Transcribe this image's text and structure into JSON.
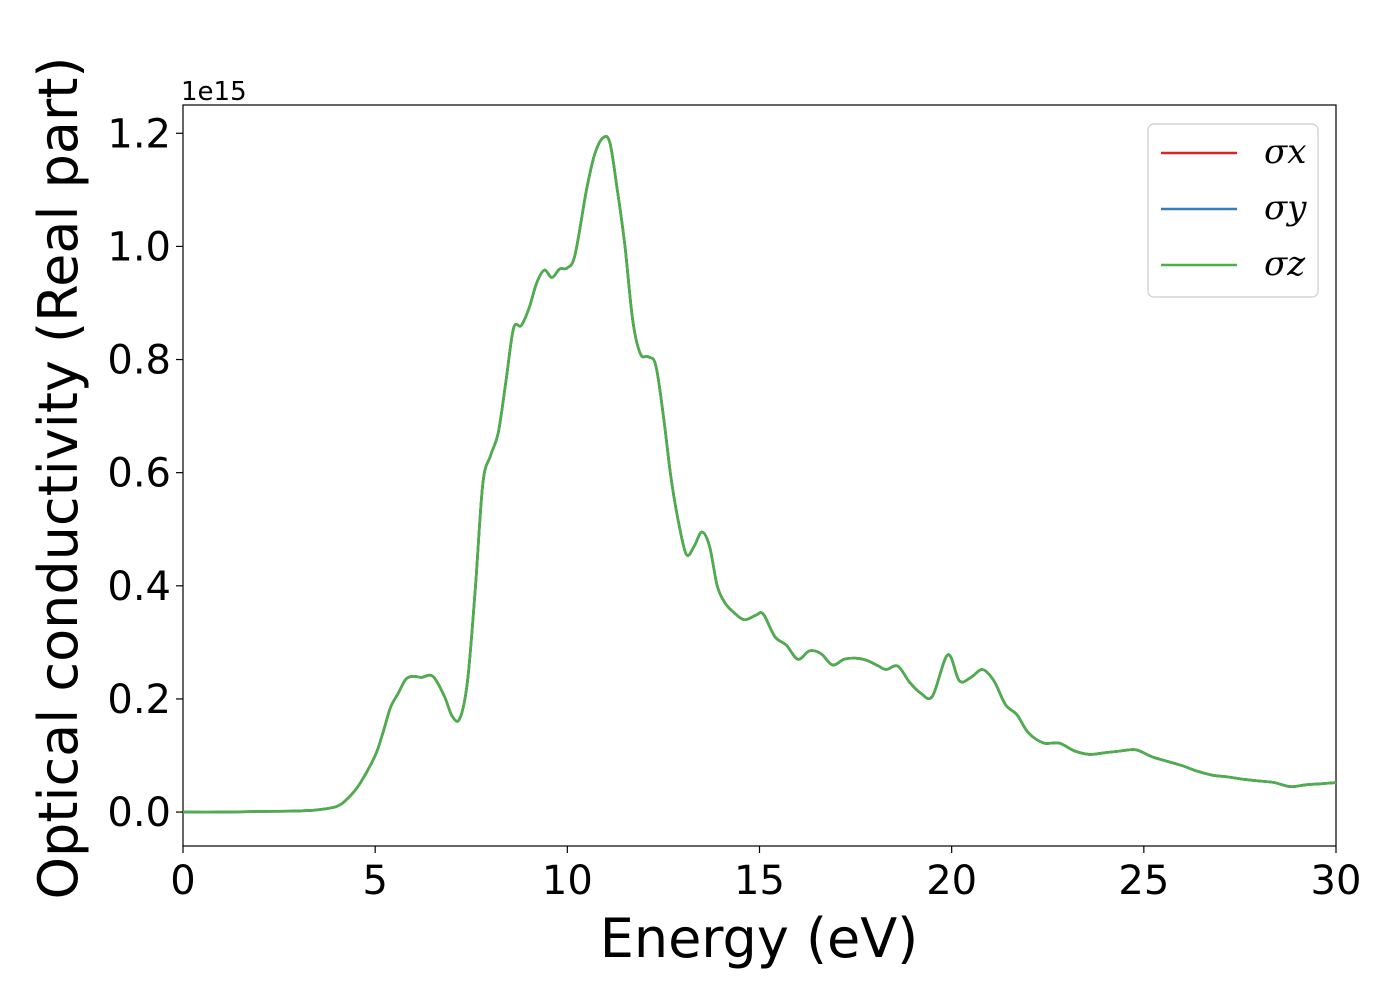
{
  "chart_data": {
    "type": "line",
    "title": "",
    "xlabel": "Energy (eV)",
    "ylabel": "Optical conductivity (Real part)",
    "y_offset_label": "1e15",
    "xlim": [
      0,
      30
    ],
    "ylim": [
      -0.06,
      1.25
    ],
    "x_ticks": [
      0,
      5,
      10,
      15,
      20,
      25,
      30
    ],
    "x_tick_labels": [
      "0",
      "5",
      "10",
      "15",
      "20",
      "25",
      "30"
    ],
    "y_ticks": [
      0.0,
      0.2,
      0.4,
      0.6,
      0.8,
      1.0,
      1.2
    ],
    "y_tick_labels": [
      "0.0",
      "0.2",
      "0.4",
      "0.6",
      "0.8",
      "1.0",
      "1.2"
    ],
    "grid": false,
    "legend_position": "top-right",
    "x": [
      0,
      1,
      2,
      3,
      3.5,
      4,
      4.3,
      4.6,
      5,
      5.2,
      5.4,
      5.6,
      5.8,
      6,
      6.2,
      6.5,
      6.8,
      7.0,
      7.2,
      7.4,
      7.6,
      7.8,
      8.0,
      8.2,
      8.4,
      8.6,
      8.8,
      9.0,
      9.2,
      9.4,
      9.6,
      9.8,
      10.0,
      10.2,
      10.5,
      10.7,
      10.9,
      11.1,
      11.3,
      11.5,
      11.7,
      11.9,
      12.1,
      12.3,
      12.5,
      12.7,
      12.9,
      13.1,
      13.3,
      13.5,
      13.7,
      13.9,
      14.1,
      14.3,
      14.6,
      14.9,
      15.1,
      15.4,
      15.7,
      16.0,
      16.3,
      16.6,
      16.9,
      17.2,
      17.5,
      17.8,
      18.1,
      18.3,
      18.6,
      18.9,
      19.2,
      19.5,
      19.9,
      20.2,
      20.5,
      20.8,
      21.1,
      21.4,
      21.7,
      22.0,
      22.4,
      22.8,
      23.2,
      23.6,
      24.0,
      24.4,
      24.8,
      25.2,
      25.6,
      26.0,
      26.4,
      26.8,
      27.2,
      27.6,
      28.0,
      28.4,
      28.8,
      29.2,
      29.6,
      30.0
    ],
    "series": [
      {
        "name": "σx",
        "color": "#d62728",
        "values": [
          0.0,
          0.0,
          0.001,
          0.002,
          0.004,
          0.01,
          0.025,
          0.05,
          0.1,
          0.14,
          0.185,
          0.21,
          0.235,
          0.24,
          0.238,
          0.24,
          0.205,
          0.17,
          0.165,
          0.23,
          0.39,
          0.58,
          0.63,
          0.67,
          0.76,
          0.855,
          0.86,
          0.89,
          0.935,
          0.958,
          0.945,
          0.96,
          0.962,
          0.985,
          1.1,
          1.16,
          1.19,
          1.185,
          1.1,
          1.0,
          0.87,
          0.81,
          0.805,
          0.79,
          0.7,
          0.59,
          0.51,
          0.455,
          0.47,
          0.495,
          0.47,
          0.4,
          0.37,
          0.355,
          0.34,
          0.348,
          0.35,
          0.31,
          0.295,
          0.27,
          0.285,
          0.28,
          0.26,
          0.27,
          0.272,
          0.268,
          0.258,
          0.252,
          0.258,
          0.23,
          0.21,
          0.205,
          0.278,
          0.232,
          0.238,
          0.252,
          0.232,
          0.19,
          0.172,
          0.14,
          0.122,
          0.122,
          0.108,
          0.102,
          0.105,
          0.108,
          0.11,
          0.098,
          0.09,
          0.082,
          0.072,
          0.065,
          0.062,
          0.058,
          0.055,
          0.052,
          0.045,
          0.048,
          0.05,
          0.052
        ]
      },
      {
        "name": "σy",
        "color": "#377eb8",
        "values": [
          0.0,
          0.0,
          0.001,
          0.002,
          0.004,
          0.01,
          0.025,
          0.05,
          0.1,
          0.14,
          0.185,
          0.21,
          0.235,
          0.24,
          0.238,
          0.24,
          0.205,
          0.17,
          0.165,
          0.23,
          0.39,
          0.58,
          0.63,
          0.67,
          0.76,
          0.855,
          0.86,
          0.89,
          0.935,
          0.958,
          0.945,
          0.96,
          0.962,
          0.985,
          1.1,
          1.16,
          1.19,
          1.185,
          1.1,
          1.0,
          0.87,
          0.81,
          0.805,
          0.79,
          0.7,
          0.59,
          0.51,
          0.455,
          0.47,
          0.495,
          0.47,
          0.4,
          0.37,
          0.355,
          0.34,
          0.348,
          0.35,
          0.31,
          0.295,
          0.27,
          0.285,
          0.28,
          0.26,
          0.27,
          0.272,
          0.268,
          0.258,
          0.252,
          0.258,
          0.23,
          0.21,
          0.205,
          0.278,
          0.232,
          0.238,
          0.252,
          0.232,
          0.19,
          0.172,
          0.14,
          0.122,
          0.122,
          0.108,
          0.102,
          0.105,
          0.108,
          0.11,
          0.098,
          0.09,
          0.082,
          0.072,
          0.065,
          0.062,
          0.058,
          0.055,
          0.052,
          0.045,
          0.048,
          0.05,
          0.052
        ]
      },
      {
        "name": "σz",
        "color": "#4daf4a",
        "values": [
          0.0,
          0.0,
          0.001,
          0.002,
          0.004,
          0.01,
          0.025,
          0.05,
          0.1,
          0.14,
          0.185,
          0.21,
          0.235,
          0.24,
          0.238,
          0.24,
          0.205,
          0.17,
          0.165,
          0.23,
          0.39,
          0.58,
          0.63,
          0.67,
          0.76,
          0.855,
          0.86,
          0.89,
          0.935,
          0.958,
          0.945,
          0.96,
          0.962,
          0.985,
          1.1,
          1.16,
          1.19,
          1.185,
          1.1,
          1.0,
          0.87,
          0.81,
          0.805,
          0.79,
          0.7,
          0.59,
          0.51,
          0.455,
          0.47,
          0.495,
          0.47,
          0.4,
          0.37,
          0.355,
          0.34,
          0.348,
          0.35,
          0.31,
          0.295,
          0.27,
          0.285,
          0.28,
          0.26,
          0.27,
          0.272,
          0.268,
          0.258,
          0.252,
          0.258,
          0.23,
          0.21,
          0.205,
          0.278,
          0.232,
          0.238,
          0.252,
          0.232,
          0.19,
          0.172,
          0.14,
          0.122,
          0.122,
          0.108,
          0.102,
          0.105,
          0.108,
          0.11,
          0.098,
          0.09,
          0.082,
          0.072,
          0.065,
          0.062,
          0.058,
          0.055,
          0.052,
          0.045,
          0.048,
          0.05,
          0.052
        ]
      }
    ]
  }
}
